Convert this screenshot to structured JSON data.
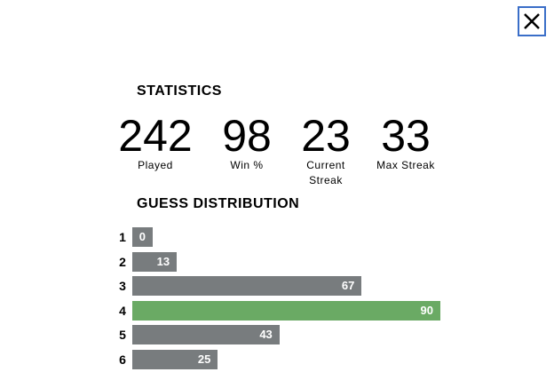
{
  "statistics": {
    "title": "STATISTICS",
    "items": [
      {
        "value": 242,
        "label": "Played"
      },
      {
        "value": 98,
        "label": "Win %"
      },
      {
        "value": 23,
        "label": "Current Streak"
      },
      {
        "value": 33,
        "label": "Max Streak"
      }
    ]
  },
  "guess_distribution": {
    "title": "GUESS DISTRIBUTION",
    "categories": [
      "1",
      "2",
      "3",
      "4",
      "5",
      "6"
    ],
    "values": [
      0,
      13,
      67,
      90,
      43,
      25
    ],
    "bar_color": "#787c7e",
    "highlight": "4",
    "highlight_color": "#6aaa64"
  }
}
